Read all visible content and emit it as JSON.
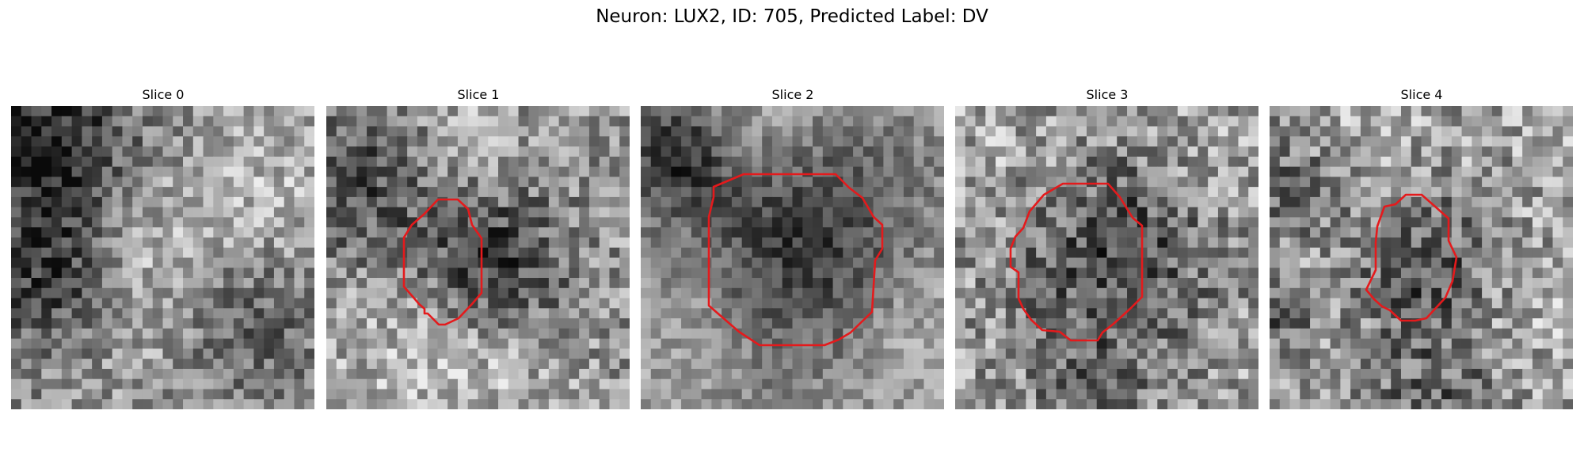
{
  "figure": {
    "title": "Neuron: LUX2, ID: 705, Predicted Label: DV"
  },
  "panels": [
    {
      "title": "Slice 0",
      "has_contour": false
    },
    {
      "title": "Slice 1",
      "has_contour": true
    },
    {
      "title": "Slice 2",
      "has_contour": true
    },
    {
      "title": "Slice 3",
      "has_contour": true
    },
    {
      "title": "Slice 4",
      "has_contour": true
    }
  ],
  "colors": {
    "contour": "#e41a1c",
    "background": "#ffffff"
  }
}
